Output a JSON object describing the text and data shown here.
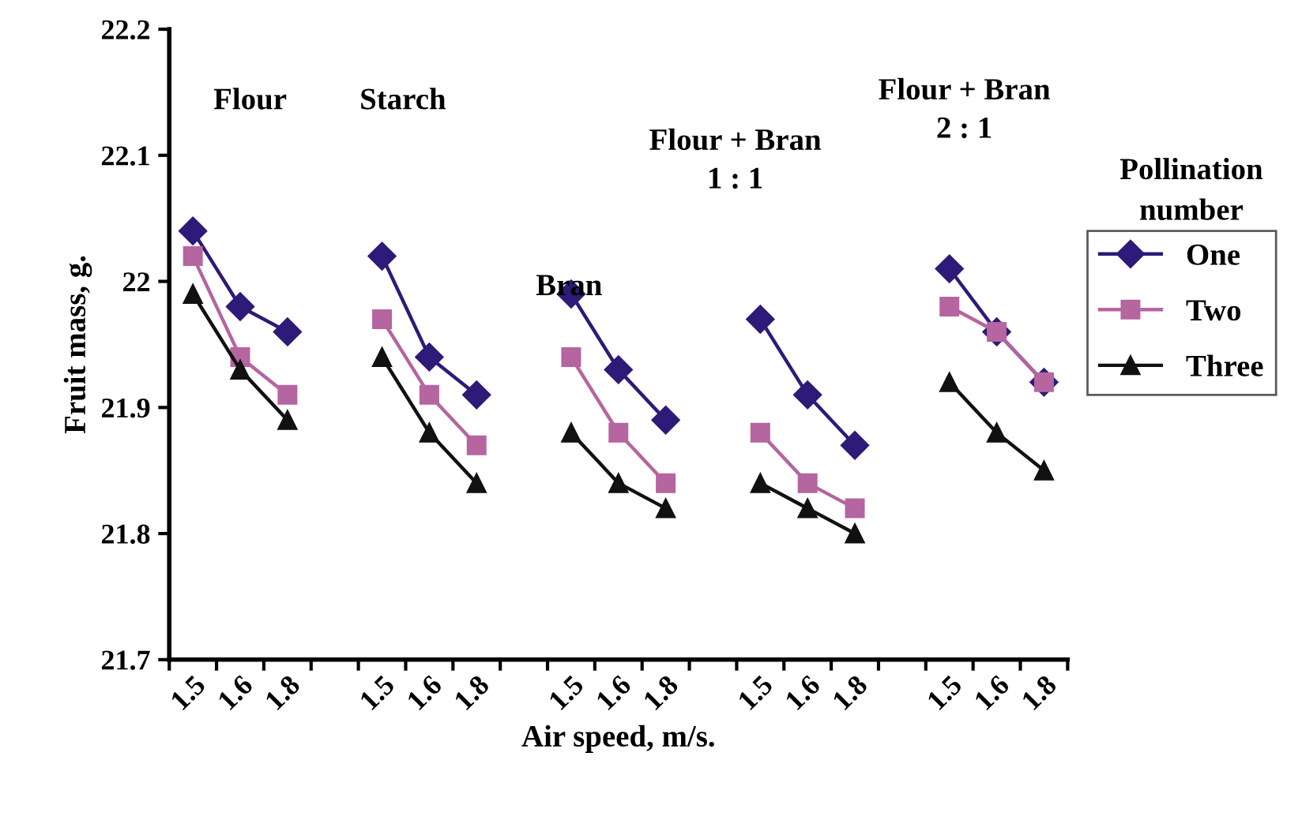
{
  "chart_data": {
    "type": "line",
    "xlabel": "Air speed, m/s.",
    "ylabel": "Fruit mass, g.",
    "legend_title": "Pollination number",
    "categories": [
      "1.5",
      "1.6",
      "1.8",
      null,
      "1.5",
      "1.6",
      "1.8",
      null,
      "1.5",
      "1.6",
      "1.8",
      null,
      "1.5",
      "1.6",
      "1.8",
      null,
      "1.5",
      "1.6",
      "1.8"
    ],
    "series": [
      {
        "name": "One",
        "color": "#2e1a78",
        "marker": "diamond",
        "values": [
          22.04,
          21.98,
          21.96,
          null,
          22.02,
          21.94,
          21.91,
          null,
          21.99,
          21.93,
          21.89,
          null,
          21.97,
          21.91,
          21.87,
          null,
          22.01,
          21.96,
          21.92
        ]
      },
      {
        "name": "Two",
        "color": "#b565a0",
        "marker": "square",
        "values": [
          22.02,
          21.94,
          21.91,
          null,
          21.97,
          21.91,
          21.87,
          null,
          21.94,
          21.88,
          21.84,
          null,
          21.88,
          21.84,
          21.82,
          null,
          21.98,
          21.96,
          21.92
        ]
      },
      {
        "name": "Three",
        "color": "#111111",
        "marker": "triangle",
        "values": [
          21.99,
          21.93,
          21.89,
          null,
          21.94,
          21.88,
          21.84,
          null,
          21.88,
          21.84,
          21.82,
          null,
          21.84,
          21.82,
          21.8,
          null,
          21.92,
          21.88,
          21.85
        ]
      }
    ],
    "annotations": [
      "Flour",
      "Starch",
      "Bran",
      "Flour + Bran\n1 : 1",
      "Flour + Bran\n2 : 1"
    ],
    "ylim": [
      21.7,
      22.2
    ],
    "yticks": [
      21.7,
      21.8,
      21.9,
      22,
      22.1,
      22.2
    ],
    "grid": false,
    "legend": "right",
    "line_style": "solid"
  }
}
